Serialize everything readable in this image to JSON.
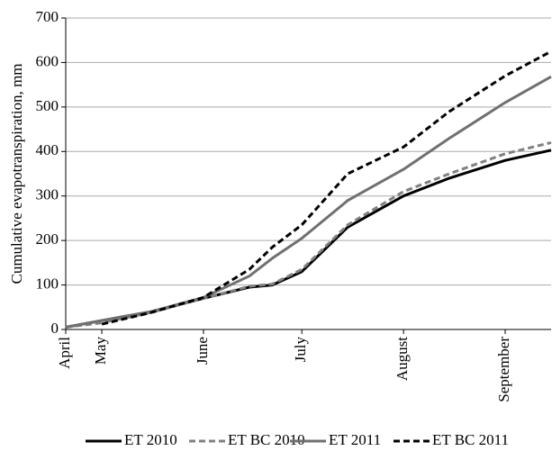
{
  "chart_data": {
    "type": "line",
    "y_label": "Cumulative evapotranspiration, mm",
    "x": [
      -11,
      0,
      15,
      31,
      45,
      52,
      61,
      75,
      92,
      106,
      123,
      137
    ],
    "xlim": [
      -11,
      137
    ],
    "xticks": [
      {
        "value": -11,
        "label": "April"
      },
      {
        "value": 0,
        "label": "May"
      },
      {
        "value": 31,
        "label": "June"
      },
      {
        "value": 61,
        "label": "July"
      },
      {
        "value": 92,
        "label": "August"
      },
      {
        "value": 123,
        "label": "September"
      }
    ],
    "ylim": [
      0,
      700
    ],
    "yticks": [
      0,
      100,
      200,
      300,
      400,
      500,
      600,
      700
    ],
    "grid": true,
    "legend": "bottom",
    "series": [
      {
        "name": "ET 2010",
        "color": "#000000",
        "line_style": "solid",
        "values": [
          5,
          20,
          40,
          70,
          95,
          100,
          130,
          230,
          300,
          340,
          380,
          403
        ]
      },
      {
        "name": "ET BC 2010",
        "color": "#808080",
        "line_style": "dashed",
        "values": [
          5,
          15,
          38,
          70,
          97,
          102,
          135,
          235,
          310,
          350,
          395,
          420
        ]
      },
      {
        "name": "ET 2011",
        "color": "#707070",
        "line_style": "solid",
        "values": [
          5,
          20,
          40,
          72,
          120,
          160,
          205,
          290,
          360,
          430,
          510,
          568
        ]
      },
      {
        "name": "ET BC 2011",
        "color": "#000000",
        "line_style": "dashed",
        "values": [
          null,
          12,
          38,
          72,
          135,
          185,
          235,
          350,
          410,
          490,
          570,
          625
        ]
      }
    ]
  }
}
